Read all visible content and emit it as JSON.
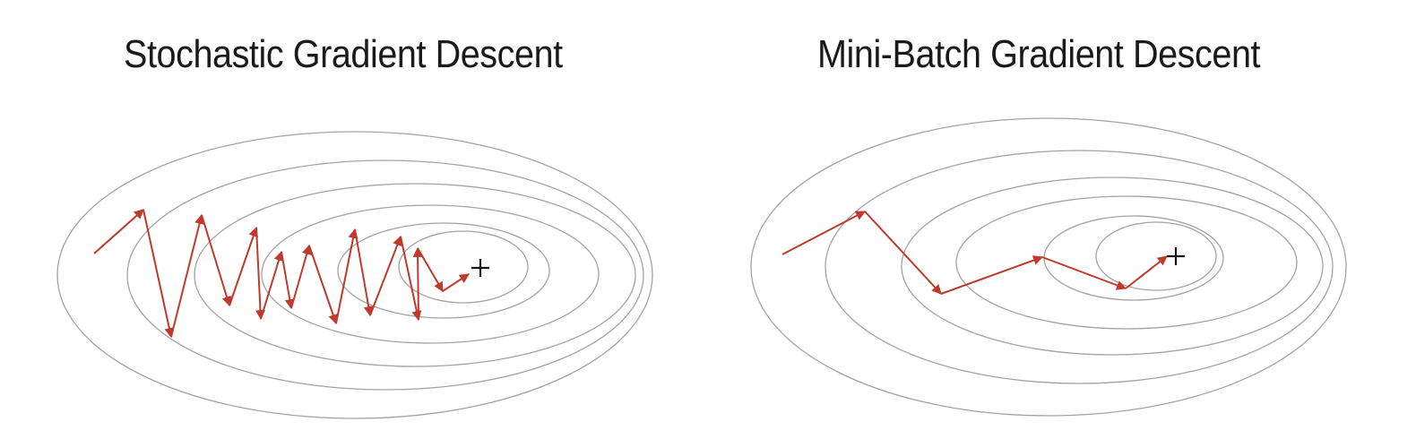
{
  "panels": {
    "left": {
      "title": "Stochastic Gradient Descent"
    },
    "right": {
      "title": "Mini-Batch Gradient Descent"
    }
  },
  "colors": {
    "contour": "#a3a3a3",
    "path": "#c0392b",
    "optimum_marker": "#111111",
    "title": "#1a1a1a",
    "background": "#ffffff"
  },
  "icons": {
    "optimum": "plus-icon",
    "step": "arrow-icon"
  }
}
